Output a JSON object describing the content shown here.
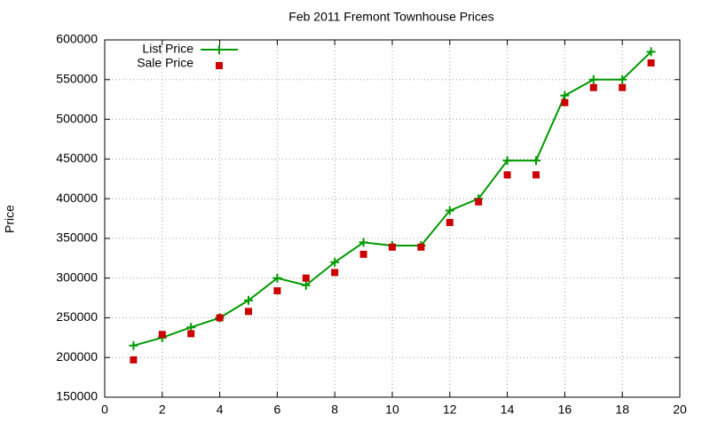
{
  "chart_data": {
    "type": "line",
    "title": "Feb 2011 Fremont Townhouse Prices",
    "y_label": "Price",
    "x": [
      1,
      2,
      3,
      4,
      5,
      6,
      7,
      8,
      9,
      10,
      11,
      12,
      13,
      14,
      15,
      16,
      17,
      18,
      19
    ],
    "series": [
      {
        "name": "List Price",
        "color": "#009900",
        "style": "linespoints",
        "values": [
          215000,
          225000,
          238000,
          250000,
          272000,
          300000,
          291000,
          320000,
          345000,
          341000,
          341000,
          385000,
          400000,
          448000,
          448000,
          530000,
          550000,
          550000,
          585000
        ]
      },
      {
        "name": "Sale Price",
        "color": "#cc0000",
        "style": "points",
        "values": [
          197000,
          229000,
          230000,
          250000,
          258000,
          284000,
          300000,
          307000,
          330000,
          339000,
          339000,
          370000,
          396000,
          430000,
          430000,
          521000,
          540000,
          540000,
          571000
        ]
      }
    ],
    "xlim": [
      0,
      20
    ],
    "xticks": [
      0,
      2,
      4,
      6,
      8,
      10,
      12,
      14,
      16,
      18,
      20
    ],
    "ylim": [
      150000,
      600000
    ],
    "yticks": [
      150000,
      200000,
      250000,
      300000,
      350000,
      400000,
      450000,
      500000,
      550000,
      600000
    ],
    "grid": true,
    "legend": "top-left"
  }
}
